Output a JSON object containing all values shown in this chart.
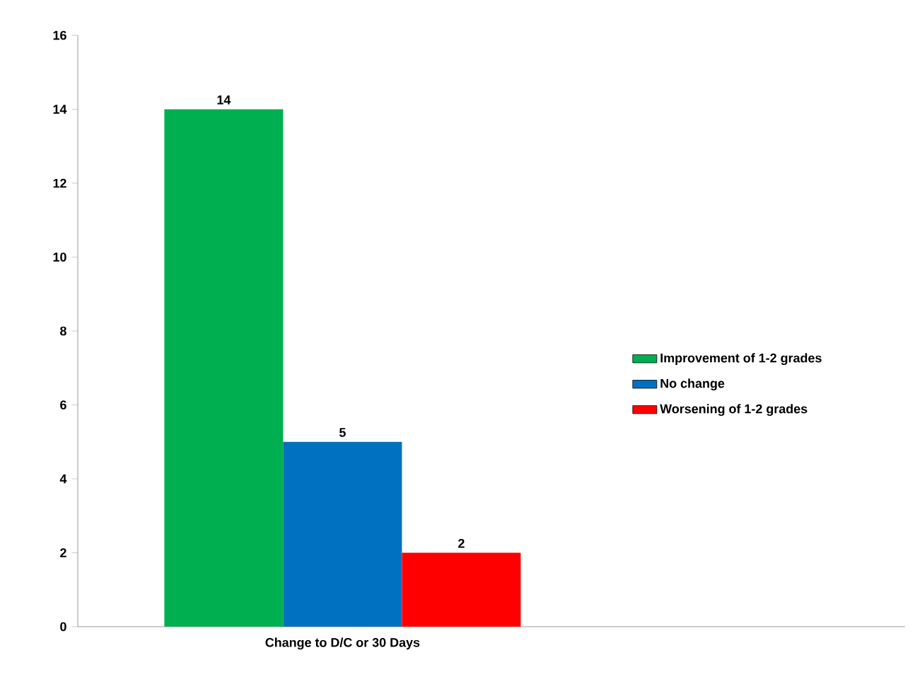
{
  "chart_data": {
    "type": "bar",
    "categories": [
      "Change to D/C or 30 Days"
    ],
    "series": [
      {
        "name": "Improvement of 1-2 grades",
        "color": "#00b050",
        "values": [
          14
        ]
      },
      {
        "name": "No change",
        "color": "#0070c0",
        "values": [
          5
        ]
      },
      {
        "name": "Worsening of 1-2 grades",
        "color": "#ff0000",
        "values": [
          2
        ]
      }
    ],
    "ylim": [
      0,
      16
    ],
    "yticks": [
      0,
      2,
      4,
      6,
      8,
      10,
      12,
      14,
      16
    ],
    "data_labels": true,
    "legend": "right",
    "grid": false
  }
}
